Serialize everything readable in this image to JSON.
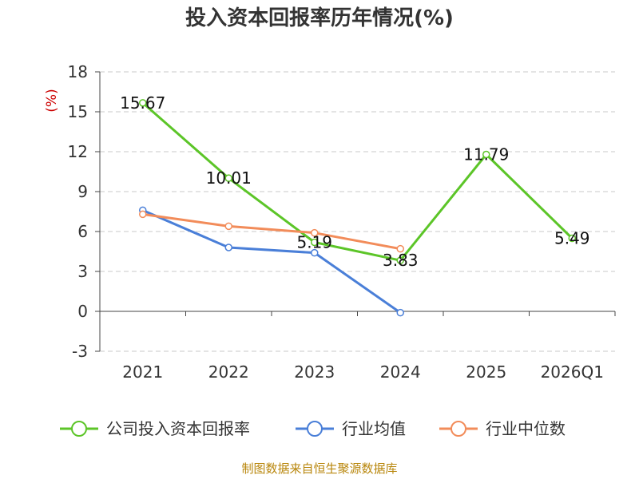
{
  "chart_data": {
    "type": "line",
    "title": "投入资本回报率历年情况(%)",
    "ylabel": "(%)",
    "categories": [
      "2021",
      "2022",
      "2023",
      "2024",
      "2025",
      "2026Q1"
    ],
    "ylim": [
      -3,
      18
    ],
    "yticks": [
      -3,
      0,
      3,
      6,
      9,
      12,
      15,
      18
    ],
    "grid": true,
    "legend_position": "bottom",
    "series": [
      {
        "name": "公司投入资本回报率",
        "color": "#5cc528",
        "values": [
          15.67,
          10.01,
          5.19,
          3.83,
          11.79,
          5.49
        ],
        "labels": [
          "15.67",
          "10.01",
          "5.19",
          "3.83",
          "11.79",
          "5.49"
        ]
      },
      {
        "name": "行业均值",
        "color": "#4a7fd8",
        "values": [
          7.6,
          4.8,
          4.4,
          -0.1,
          null,
          null
        ]
      },
      {
        "name": "行业中位数",
        "color": "#f28c5a",
        "values": [
          7.3,
          6.4,
          5.9,
          4.7,
          null,
          null
        ]
      }
    ]
  },
  "footer": {
    "source": "制图数据来自恒生聚源数据库"
  }
}
